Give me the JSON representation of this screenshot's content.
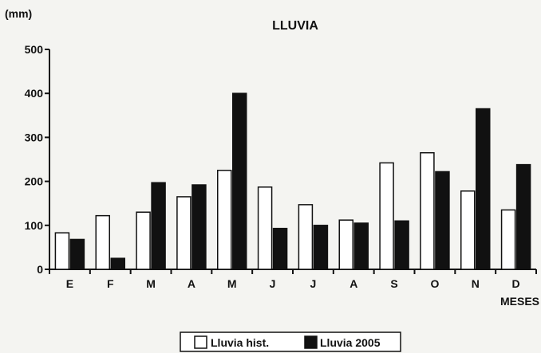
{
  "chart_data": {
    "type": "bar",
    "title": "LLUVIA",
    "ylabel": "(mm)",
    "xlabel": "MESES",
    "categories": [
      "E",
      "F",
      "M",
      "A",
      "M",
      "J",
      "J",
      "A",
      "S",
      "O",
      "N",
      "D"
    ],
    "series": [
      {
        "name": "Lluvia hist.",
        "color": "#ffffff",
        "values": [
          83,
          122,
          130,
          165,
          225,
          187,
          147,
          112,
          242,
          265,
          178,
          135
        ]
      },
      {
        "name": "Lluvia 2005",
        "color": "#111111",
        "values": [
          68,
          25,
          197,
          192,
          400,
          93,
          100,
          105,
          110,
          222,
          365,
          238
        ]
      }
    ],
    "ylim": [
      0,
      500
    ],
    "yticks": [
      0,
      100,
      200,
      300,
      400,
      500
    ],
    "grid": false,
    "legend": "bottom-center"
  }
}
